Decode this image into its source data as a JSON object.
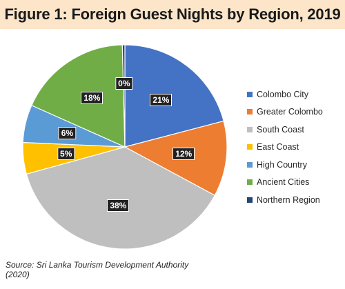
{
  "chart_data": {
    "type": "pie",
    "title": "Figure 1: Foreign Guest Nights by Region, 2019",
    "slices": [
      {
        "name": "Colombo City",
        "value": 21,
        "label": "21%",
        "color": "#4472c4"
      },
      {
        "name": "Greater Colombo",
        "value": 12,
        "label": "12%",
        "color": "#ed7d31"
      },
      {
        "name": "South Coast",
        "value": 38,
        "label": "38%",
        "color": "#bfbfbf"
      },
      {
        "name": "East Coast",
        "value": 5,
        "label": "5%",
        "color": "#ffc000"
      },
      {
        "name": "High Country",
        "value": 6,
        "label": "6%",
        "color": "#5b9bd5"
      },
      {
        "name": "Ancient Cities",
        "value": 18,
        "label": "18%",
        "color": "#70ad47"
      },
      {
        "name": "Northern Region",
        "value": 0.4,
        "label": "0%",
        "color": "#264478"
      }
    ],
    "legend_position": "right"
  },
  "source_note": "Source: Sri Lanka Tourism Development Authority (2020)"
}
